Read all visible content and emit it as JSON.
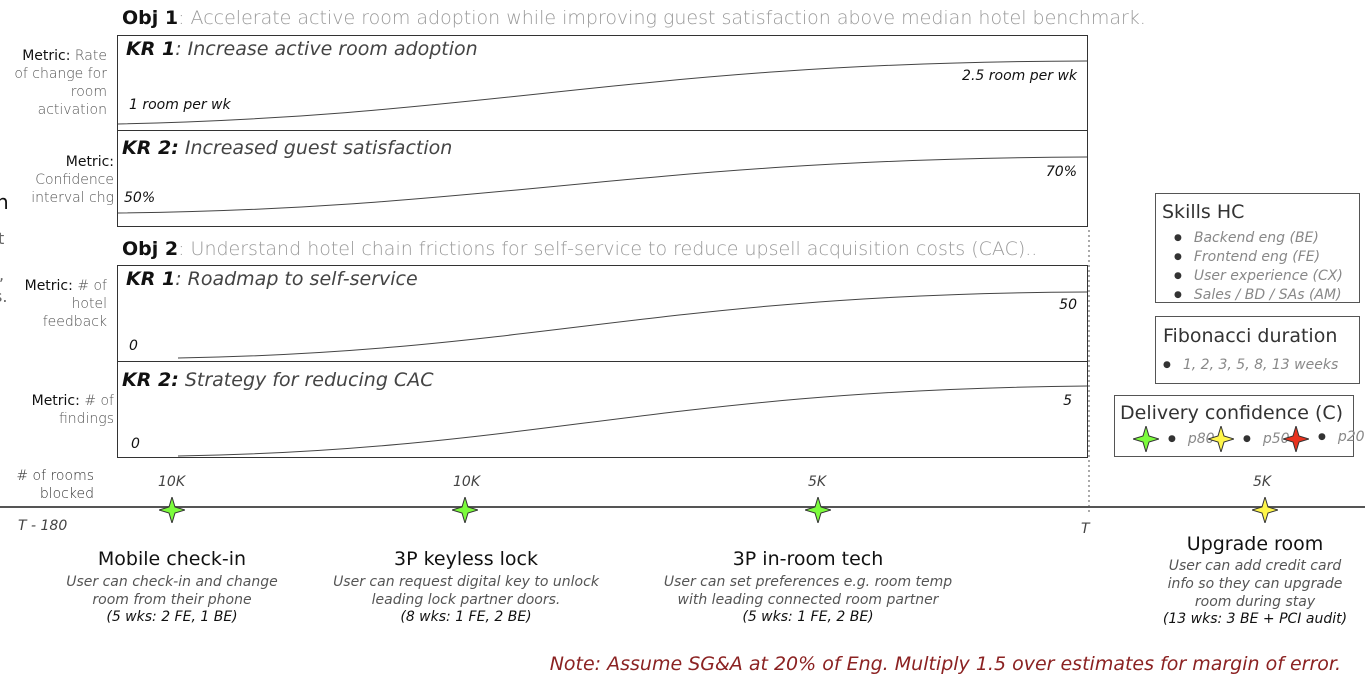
{
  "objectives": [
    {
      "label": "Obj 1",
      "text": ": Accelerate active room adoption while improving guest satisfaction above median hotel benchmark.",
      "key_results": [
        {
          "label": "KR 1",
          "title": ": Increase active room adoption",
          "metric_key": "Metric:",
          "metric_text": "Rate of change for room activation",
          "start": "1 room per wk",
          "end": "2.5 room per wk"
        },
        {
          "label": "KR 2:",
          "title": "Increased guest satisfaction",
          "metric_key": "Metric:",
          "metric_text": "Confidence interval chg",
          "start": "50%",
          "end": "70%"
        }
      ]
    },
    {
      "label": "Obj 2",
      "text": ": Understand hotel chain frictions for self-service to reduce upsell acquisition costs (CAC)..",
      "key_results": [
        {
          "label": "KR 1",
          "title": ": Roadmap to self-service",
          "metric_key": "Metric:",
          "metric_text": "# of hotel feedback",
          "start": "0",
          "end": "50"
        },
        {
          "label": "KR 2:",
          "title": "Strategy for reducing CAC",
          "metric_key": "Metric:",
          "metric_text": "# of findings",
          "start": "0",
          "end": "5"
        }
      ]
    }
  ],
  "timeline": {
    "rooms_label": "# of rooms blocked",
    "start_label": "T - 180",
    "end_label": "T"
  },
  "milestones": [
    {
      "title": "Mobile check-in",
      "description": "User can check-in and change room from their phone",
      "estimate": "(5 wks: 2 FE, 1 BE)",
      "rooms": "10K",
      "confidence": "p80"
    },
    {
      "title": "3P keyless lock",
      "description": "User can request digital key to unlock leading lock partner doors.",
      "estimate": "(8 wks: 1 FE, 2 BE)",
      "rooms": "10K",
      "confidence": "p80"
    },
    {
      "title": "3P in-room tech",
      "description": "User can set preferences e.g. room temp with leading connected room partner",
      "estimate": "(5 wks: 1 FE, 2 BE)",
      "rooms": "5K",
      "confidence": "p80"
    },
    {
      "title": "Upgrade room",
      "description": "User can add credit card info so they can upgrade room during stay",
      "estimate": "(13 wks: 3 BE + PCI audit)",
      "rooms": "5K",
      "confidence": "p50"
    }
  ],
  "legend": {
    "skills_title": "Skills HC",
    "skills": [
      "Backend eng (BE)",
      "Frontend eng (FE)",
      "User experience (CX)",
      "Sales / BD / SAs (AM)"
    ],
    "fibonacci_title": "Fibonacci duration",
    "fibonacci_values": "1, 2, 3, 5, 8, 13 weeks",
    "confidence_title": "Delivery confidence (C)",
    "confidence_levels": [
      {
        "label": "p80",
        "color": "#7CFC3C"
      },
      {
        "label": "p50",
        "color": "#FFF64A"
      },
      {
        "label": "p20",
        "color": "#E8321E"
      }
    ]
  },
  "note": {
    "label": "Note",
    "text": ": Assume SG&A at 20% of Eng. Multiply 1.5 over estimates for margin of error."
  },
  "cutoff": {
    "left_a": "n",
    "left_b": "t",
    "left_c": ",",
    "left_d": "s."
  }
}
